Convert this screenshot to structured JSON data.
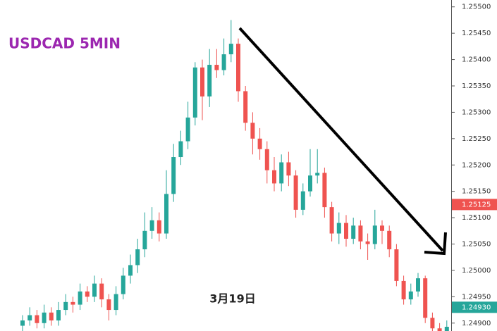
{
  "chart_data": {
    "type": "candlestick",
    "title": "USDCAD 5MIN",
    "annotation": "3月19日",
    "up_color": "#26a69a",
    "down_color": "#ef5350",
    "title_color": "#9c27b0",
    "ylim": [
      1.24885,
      1.25513
    ],
    "yticks": [
      {
        "value": 1.255,
        "label": "1.25500"
      },
      {
        "value": 1.2545,
        "label": "1.25450"
      },
      {
        "value": 1.254,
        "label": "1.25400"
      },
      {
        "value": 1.2535,
        "label": "1.25350"
      },
      {
        "value": 1.253,
        "label": "1.25300"
      },
      {
        "value": 1.2525,
        "label": "1.25250"
      },
      {
        "value": 1.252,
        "label": "1.25200"
      },
      {
        "value": 1.2515,
        "label": "1.25150"
      },
      {
        "value": 1.251,
        "label": "1.25100"
      },
      {
        "value": 1.2505,
        "label": "1.25050"
      },
      {
        "value": 1.25,
        "label": "1.25000"
      },
      {
        "value": 1.2495,
        "label": "1.24950"
      },
      {
        "value": 1.249,
        "label": "1.24900"
      }
    ],
    "price_tags": [
      {
        "price": 1.25125,
        "color": "#ef5350"
      },
      {
        "price": {
          "value": 1.2493,
          "label": "1.24930"
        },
        "color": "#26a69a"
      }
    ],
    "open": [
      1.24895,
      1.24905,
      1.24915,
      1.249,
      1.2492,
      1.24905,
      1.24925,
      1.2494,
      1.24935,
      1.2496,
      1.2495,
      1.24975,
      1.24945,
      1.24925,
      1.24955,
      1.2499,
      1.2501,
      1.2504,
      1.25075,
      1.25095,
      1.2507,
      1.25145,
      1.25215,
      1.25245,
      1.2529,
      1.25385,
      1.2533,
      1.2539,
      1.2538,
      1.2541,
      1.2543,
      1.2534,
      1.2528,
      1.2525,
      1.2523,
      1.2519,
      1.25165,
      1.25205,
      1.2518,
      1.25115,
      1.2515,
      1.2518,
      1.25185,
      1.2512,
      1.2507,
      1.2509,
      1.2506,
      1.25085,
      1.25055,
      1.2505,
      1.25085,
      1.25075,
      1.2504,
      1.2498,
      1.24945,
      1.2496,
      1.24985,
      1.2491,
      1.2489,
      1.2488
    ],
    "high": [
      1.24915,
      1.2493,
      1.24925,
      1.24935,
      1.2493,
      1.2494,
      1.24955,
      1.2495,
      1.24975,
      1.2497,
      1.2499,
      1.24985,
      1.24955,
      1.2497,
      1.25005,
      1.2503,
      1.2506,
      1.2511,
      1.2512,
      1.2511,
      1.2519,
      1.2524,
      1.25265,
      1.2532,
      1.25395,
      1.254,
      1.2542,
      1.2542,
      1.2544,
      1.25475,
      1.2544,
      1.2535,
      1.253,
      1.2527,
      1.25245,
      1.25215,
      1.2522,
      1.25225,
      1.2519,
      1.25165,
      1.2523,
      1.2523,
      1.25195,
      1.2513,
      1.2511,
      1.25105,
      1.251,
      1.25095,
      1.2507,
      1.25115,
      1.25095,
      1.25085,
      1.2505,
      1.2499,
      1.24975,
      1.24995,
      1.2499,
      1.2492,
      1.249,
      1.24905
    ],
    "low": [
      1.24885,
      1.24895,
      1.2489,
      1.2489,
      1.24895,
      1.24895,
      1.24915,
      1.2492,
      1.24925,
      1.2494,
      1.2494,
      1.2493,
      1.24905,
      1.24915,
      1.24945,
      1.24975,
      1.24995,
      1.25025,
      1.2506,
      1.25055,
      1.2506,
      1.2513,
      1.252,
      1.2523,
      1.25275,
      1.25285,
      1.2531,
      1.25365,
      1.2537,
      1.25395,
      1.2532,
      1.25265,
      1.2522,
      1.2521,
      1.25165,
      1.2515,
      1.2515,
      1.2516,
      1.251,
      1.25105,
      1.2514,
      1.25165,
      1.251,
      1.25055,
      1.2505,
      1.25045,
      1.2505,
      1.2504,
      1.2502,
      1.2504,
      1.2505,
      1.25025,
      1.2497,
      1.24935,
      1.24935,
      1.2495,
      1.249,
      1.24875,
      1.24865,
      1.2487
    ],
    "close": [
      1.24905,
      1.24915,
      1.249,
      1.2492,
      1.24905,
      1.24925,
      1.2494,
      1.24935,
      1.2496,
      1.2495,
      1.24975,
      1.24945,
      1.24925,
      1.24955,
      1.2499,
      1.2501,
      1.2504,
      1.25075,
      1.25095,
      1.2507,
      1.25145,
      1.25215,
      1.25245,
      1.2529,
      1.25385,
      1.2533,
      1.2539,
      1.2538,
      1.2541,
      1.2543,
      1.2534,
      1.2528,
      1.2525,
      1.2523,
      1.2519,
      1.25165,
      1.25205,
      1.2518,
      1.25115,
      1.2515,
      1.2518,
      1.25185,
      1.2512,
      1.2507,
      1.2509,
      1.2506,
      1.25085,
      1.25055,
      1.2505,
      1.25085,
      1.25075,
      1.2504,
      1.2498,
      1.24945,
      1.2496,
      1.24985,
      1.2491,
      1.2489,
      1.2488,
      1.24893
    ]
  }
}
